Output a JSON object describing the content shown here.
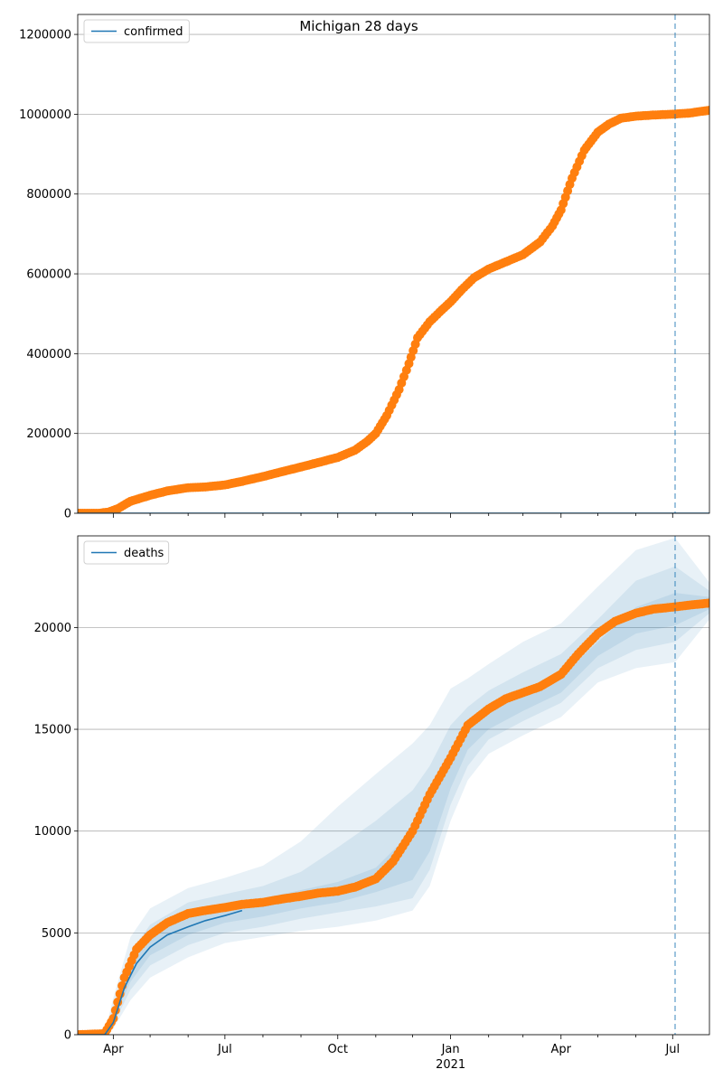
{
  "figure_title": "Michigan 28 days",
  "colors": {
    "fit_line": "#1f77b4",
    "observed": "#ff7f0e",
    "band": "#1f77b4",
    "grid": "#b0b0b0",
    "cutoff_line": "#1f77b4"
  },
  "chart_data": [
    {
      "type": "line",
      "panel": "top",
      "legend": [
        "confirmed"
      ],
      "legend_position": "top-left",
      "grid": "horizontal",
      "xlim": [
        "2020-03-03",
        "2021-07-31"
      ],
      "ylim": [
        0,
        1250000
      ],
      "yticks": [
        0,
        200000,
        400000,
        600000,
        800000,
        1000000,
        1200000
      ],
      "ytick_labels": [
        "0",
        "200000",
        "400000",
        "600000",
        "800000",
        "1000000",
        "1200000"
      ],
      "cutoff_date": "2021-07-03",
      "series": [
        {
          "name": "confirmed",
          "role": "model",
          "x": [
            "2020-03-03",
            "2021-07-31"
          ],
          "y": [
            0,
            0
          ]
        },
        {
          "role": "observed",
          "x": [
            "2020-03-03",
            "2020-03-20",
            "2020-03-28",
            "2020-04-05",
            "2020-04-15",
            "2020-05-01",
            "2020-05-15",
            "2020-06-01",
            "2020-06-15",
            "2020-07-01",
            "2020-07-15",
            "2020-08-01",
            "2020-08-15",
            "2020-09-01",
            "2020-09-15",
            "2020-10-01",
            "2020-10-15",
            "2020-10-25",
            "2020-11-01",
            "2020-11-10",
            "2020-11-20",
            "2020-11-28",
            "2020-12-05",
            "2020-12-15",
            "2020-12-25",
            "2021-01-01",
            "2021-01-10",
            "2021-01-20",
            "2021-02-01",
            "2021-02-15",
            "2021-03-01",
            "2021-03-15",
            "2021-03-25",
            "2021-04-01",
            "2021-04-10",
            "2021-04-20",
            "2021-05-01",
            "2021-05-10",
            "2021-05-20",
            "2021-06-01",
            "2021-06-15",
            "2021-07-01",
            "2021-07-15",
            "2021-07-31"
          ],
          "y": [
            0,
            0,
            3000,
            12000,
            30000,
            45000,
            56000,
            64000,
            66000,
            71000,
            80000,
            92000,
            103000,
            116000,
            127000,
            140000,
            158000,
            180000,
            200000,
            245000,
            310000,
            375000,
            440000,
            480000,
            510000,
            530000,
            560000,
            590000,
            612000,
            630000,
            648000,
            680000,
            720000,
            760000,
            840000,
            910000,
            955000,
            975000,
            990000,
            995000,
            998000,
            1000000,
            1003000,
            1010000
          ]
        }
      ]
    },
    {
      "type": "line",
      "panel": "bottom",
      "legend": [
        "deaths"
      ],
      "legend_position": "top-left",
      "grid": "horizontal",
      "xlim": [
        "2020-03-03",
        "2021-07-31"
      ],
      "xticks": [
        "2020-04-01",
        "2020-07-01",
        "2020-10-01",
        "2021-01-01",
        "2021-04-01",
        "2021-07-01"
      ],
      "xtick_labels": [
        "Apr",
        "Jul",
        "Oct",
        "Jan",
        "Apr",
        "Jul"
      ],
      "xtick_sublabel": "2021",
      "ylim": [
        0,
        24500
      ],
      "yticks": [
        0,
        5000,
        10000,
        15000,
        20000
      ],
      "ytick_labels": [
        "0",
        "5000",
        "10000",
        "15000",
        "20000"
      ],
      "cutoff_date": "2021-07-03",
      "series": [
        {
          "name": "deaths",
          "role": "model",
          "x": [
            "2020-03-03",
            "2020-03-25",
            "2020-04-01",
            "2020-04-10",
            "2020-04-20",
            "2020-05-01",
            "2020-05-15",
            "2020-06-01",
            "2020-06-15",
            "2020-07-01",
            "2020-07-15"
          ],
          "y": [
            0,
            0,
            600,
            2300,
            3500,
            4300,
            4900,
            5300,
            5600,
            5850,
            6100
          ]
        },
        {
          "role": "observed",
          "x": [
            "2020-03-03",
            "2020-03-25",
            "2020-04-01",
            "2020-04-10",
            "2020-04-20",
            "2020-05-01",
            "2020-05-15",
            "2020-06-01",
            "2020-06-15",
            "2020-07-01",
            "2020-07-15",
            "2020-08-01",
            "2020-08-15",
            "2020-09-01",
            "2020-09-15",
            "2020-10-01",
            "2020-10-15",
            "2020-11-01",
            "2020-11-15",
            "2020-12-01",
            "2020-12-15",
            "2021-01-01",
            "2021-01-15",
            "2021-02-01",
            "2021-02-15",
            "2021-03-01",
            "2021-03-15",
            "2021-04-01",
            "2021-04-15",
            "2021-05-01",
            "2021-05-15",
            "2021-06-01",
            "2021-06-15",
            "2021-07-01",
            "2021-07-15",
            "2021-07-31"
          ],
          "y": [
            0,
            50,
            800,
            2800,
            4200,
            4900,
            5500,
            5950,
            6100,
            6250,
            6400,
            6500,
            6650,
            6800,
            6950,
            7050,
            7250,
            7650,
            8500,
            10000,
            11800,
            13600,
            15200,
            16000,
            16500,
            16800,
            17100,
            17700,
            18700,
            19700,
            20300,
            20700,
            20900,
            21000,
            21100,
            21200
          ]
        },
        {
          "role": "band_outer",
          "x": [
            "2020-03-03",
            "2020-03-25",
            "2020-04-01",
            "2020-04-15",
            "2020-05-01",
            "2020-06-01",
            "2020-07-01",
            "2020-08-01",
            "2020-09-01",
            "2020-10-01",
            "2020-11-01",
            "2020-12-01",
            "2020-12-15",
            "2021-01-01",
            "2021-01-15",
            "2021-02-01",
            "2021-03-01",
            "2021-04-01",
            "2021-05-01",
            "2021-06-01",
            "2021-07-03",
            "2021-07-31"
          ],
          "upper": [
            0,
            100,
            1800,
            4800,
            6200,
            7200,
            7700,
            8300,
            9500,
            11200,
            12800,
            14300,
            15200,
            17000,
            17500,
            18200,
            19300,
            20200,
            22000,
            23800,
            24400,
            22200
          ],
          "lower": [
            0,
            0,
            300,
            1700,
            2800,
            3800,
            4500,
            4800,
            5100,
            5300,
            5600,
            6100,
            7300,
            10500,
            12500,
            13800,
            14700,
            15600,
            17300,
            18000,
            18300,
            20400
          ]
        },
        {
          "role": "band_inner",
          "x": [
            "2020-03-03",
            "2020-03-25",
            "2020-04-01",
            "2020-04-15",
            "2020-05-01",
            "2020-06-01",
            "2020-07-01",
            "2020-08-01",
            "2020-09-01",
            "2020-10-01",
            "2020-11-01",
            "2020-12-01",
            "2020-12-15",
            "2021-01-01",
            "2021-01-15",
            "2021-02-01",
            "2021-03-01",
            "2021-04-01",
            "2021-05-01",
            "2021-06-01",
            "2021-07-03",
            "2021-07-31"
          ],
          "upper": [
            0,
            70,
            1400,
            4000,
            5400,
            6500,
            6900,
            7300,
            8000,
            9200,
            10500,
            12000,
            13200,
            15200,
            16100,
            16900,
            17800,
            18700,
            20400,
            22300,
            23000,
            21800
          ],
          "lower": [
            0,
            0,
            500,
            2200,
            3400,
            4400,
            5000,
            5300,
            5700,
            6000,
            6300,
            6700,
            8100,
            11300,
            13200,
            14500,
            15400,
            16300,
            18000,
            18900,
            19300,
            20700
          ]
        },
        {
          "role": "band_core",
          "x": [
            "2020-03-03",
            "2020-03-25",
            "2020-04-01",
            "2020-04-15",
            "2020-05-01",
            "2020-06-01",
            "2020-07-01",
            "2020-08-01",
            "2020-09-01",
            "2020-10-01",
            "2020-11-01",
            "2020-12-01",
            "2020-12-15",
            "2021-01-01",
            "2021-01-15",
            "2021-02-01",
            "2021-03-01",
            "2021-04-01",
            "2021-05-01",
            "2021-06-01",
            "2021-07-03",
            "2021-07-31"
          ],
          "upper": [
            0,
            50,
            1000,
            3400,
            4800,
            5900,
            6400,
            6700,
            7100,
            7500,
            8200,
            10000,
            11600,
            14000,
            15300,
            16200,
            16800,
            17600,
            19300,
            21000,
            21700,
            21500
          ],
          "lower": [
            0,
            0,
            700,
            2600,
            3900,
            4900,
            5500,
            5800,
            6200,
            6500,
            7000,
            7600,
            9000,
            12100,
            14000,
            15000,
            15900,
            16800,
            18600,
            19700,
            20100,
            20900
          ]
        }
      ]
    }
  ]
}
